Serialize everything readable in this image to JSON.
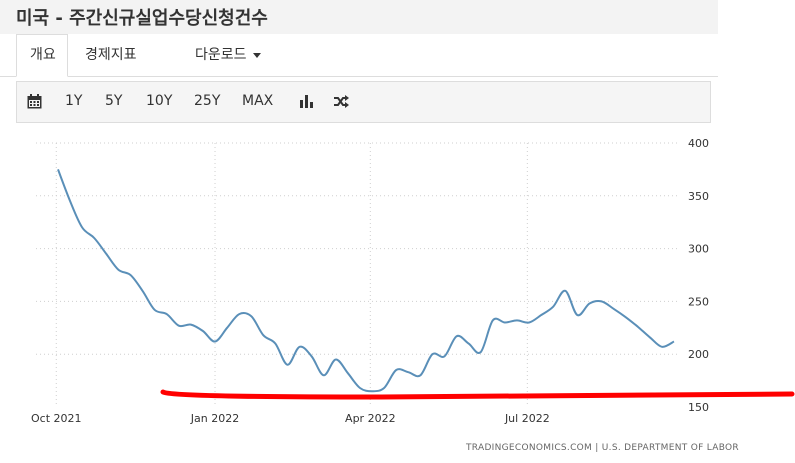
{
  "page": {
    "title": "미국 - 주간신규실업수당신청건수"
  },
  "tabs": {
    "overview": "개요",
    "indicators": "경제지표",
    "download": "다운로드"
  },
  "toolbar": {
    "calendar_icon": "calendar-icon",
    "ranges": [
      "1Y",
      "5Y",
      "10Y",
      "25Y",
      "MAX"
    ],
    "bar_chart_icon": "bar-chart-icon",
    "shuffle_icon": "shuffle-icon"
  },
  "chart_data": {
    "type": "line",
    "title": "",
    "xlabel": "",
    "ylabel": "",
    "x_tick_labels": [
      "Oct 2021",
      "Jan 2022",
      "Apr 2022",
      "Jul 2022"
    ],
    "y_ticks": [
      150,
      200,
      250,
      300,
      350,
      400
    ],
    "ylim": [
      150,
      400
    ],
    "y_axis_position": "right",
    "grid": true,
    "line_color": "#5a8fb8",
    "series": [
      {
        "name": "",
        "x": [
          "2021-10-02",
          "2021-10-09",
          "2021-10-16",
          "2021-10-23",
          "2021-10-30",
          "2021-11-06",
          "2021-11-13",
          "2021-11-20",
          "2021-11-27",
          "2021-12-04",
          "2021-12-11",
          "2021-12-18",
          "2021-12-25",
          "2022-01-01",
          "2022-01-08",
          "2022-01-15",
          "2022-01-22",
          "2022-01-29",
          "2022-02-05",
          "2022-02-12",
          "2022-02-19",
          "2022-02-26",
          "2022-03-05",
          "2022-03-12",
          "2022-03-19",
          "2022-03-26",
          "2022-04-02",
          "2022-04-09",
          "2022-04-16",
          "2022-04-23",
          "2022-04-30",
          "2022-05-07",
          "2022-05-14",
          "2022-05-21",
          "2022-05-28",
          "2022-06-04",
          "2022-06-11",
          "2022-06-18",
          "2022-06-25",
          "2022-07-02",
          "2022-07-09",
          "2022-07-16",
          "2022-07-23",
          "2022-07-30",
          "2022-08-06",
          "2022-08-13",
          "2022-08-20",
          "2022-08-27",
          "2022-09-03",
          "2022-09-10",
          "2022-09-17",
          "2022-09-24"
        ],
        "values": [
          375,
          345,
          320,
          310,
          295,
          280,
          275,
          260,
          242,
          238,
          227,
          228,
          222,
          212,
          225,
          238,
          236,
          218,
          210,
          190,
          207,
          198,
          180,
          195,
          182,
          168,
          165,
          168,
          185,
          183,
          180,
          200,
          198,
          217,
          210,
          202,
          232,
          230,
          232,
          230,
          237,
          245,
          260,
          237,
          248,
          250,
          243,
          235,
          226,
          216,
          207,
          212
        ]
      }
    ]
  },
  "annotation": {
    "color": "#ff0000"
  },
  "source": {
    "text": "TRADINGECONOMICS.COM  |  U.S. DEPARTMENT OF LABOR"
  }
}
